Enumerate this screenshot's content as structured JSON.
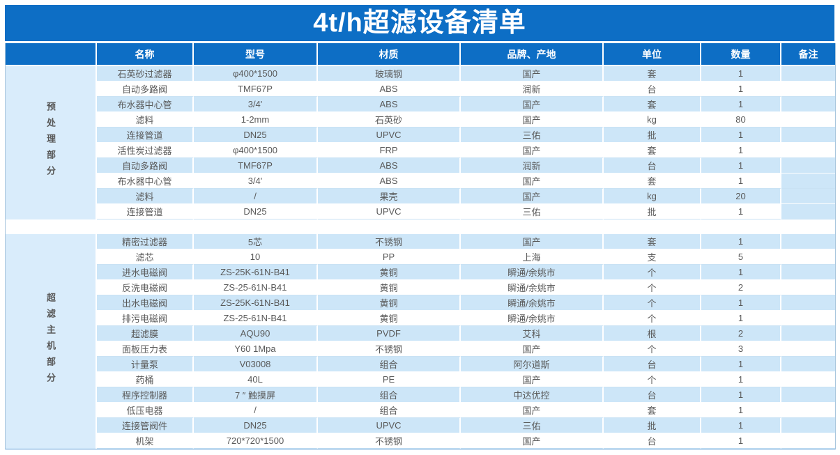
{
  "title": "4t/h超滤设备清单",
  "columns": [
    "名称",
    "型号",
    "材质",
    "品牌、产地",
    "单位",
    "数量",
    "备注"
  ],
  "sections": [
    {
      "label": "预处理部分",
      "remark_filled_rows": [
        7,
        8,
        9
      ],
      "rows": [
        [
          "石英砂过滤器",
          "φ400*1500",
          "玻璃钢",
          "国产",
          "套",
          "1",
          ""
        ],
        [
          "自动多路阀",
          "TMF67P",
          "ABS",
          "润新",
          "台",
          "1",
          ""
        ],
        [
          "布水器中心管",
          "3/4'",
          "ABS",
          "国产",
          "套",
          "1",
          ""
        ],
        [
          "滤料",
          "1-2mm",
          "石英砂",
          "国产",
          "kg",
          "80",
          ""
        ],
        [
          "连接管道",
          "DN25",
          "UPVC",
          "三佑",
          "批",
          "1",
          ""
        ],
        [
          "活性炭过滤器",
          "φ400*1500",
          "FRP",
          "国产",
          "套",
          "1",
          ""
        ],
        [
          "自动多路阀",
          "TMF67P",
          "ABS",
          "润新",
          "台",
          "1",
          ""
        ],
        [
          "布水器中心管",
          "3/4'",
          "ABS",
          "国产",
          "套",
          "1",
          ""
        ],
        [
          "滤料",
          "/",
          "果壳",
          "国产",
          "kg",
          "20",
          ""
        ],
        [
          "连接管道",
          "DN25",
          "UPVC",
          "三佑",
          "批",
          "1",
          ""
        ]
      ]
    },
    {
      "label": "超滤主机部分",
      "remark_filled_rows": [],
      "rows": [
        [
          "精密过滤器",
          "5芯",
          "不锈钢",
          "国产",
          "套",
          "1",
          ""
        ],
        [
          "滤芯",
          "10",
          "PP",
          "上海",
          "支",
          "5",
          ""
        ],
        [
          "进水电磁阀",
          "ZS-25K-61N-B41",
          "黄铜",
          "瞬通/余姚市",
          "个",
          "1",
          ""
        ],
        [
          "反洗电磁阀",
          "ZS-25-61N-B41",
          "黄铜",
          "瞬通/余姚市",
          "个",
          "2",
          ""
        ],
        [
          "出水电磁阀",
          "ZS-25K-61N-B41",
          "黄铜",
          "瞬通/余姚市",
          "个",
          "1",
          ""
        ],
        [
          "排污电磁阀",
          "ZS-25-61N-B41",
          "黄铜",
          "瞬通/余姚市",
          "个",
          "1",
          ""
        ],
        [
          "超滤膜",
          "AQU90",
          "PVDF",
          "艾科",
          "根",
          "2",
          ""
        ],
        [
          "面板压力表",
          "Y60 1Mpa",
          "不锈钢",
          "国产",
          "个",
          "3",
          ""
        ],
        [
          "计量泵",
          "V03008",
          "组合",
          "阿尔道斯",
          "台",
          "1",
          ""
        ],
        [
          "药桶",
          "40L",
          "PE",
          "国产",
          "个",
          "1",
          ""
        ],
        [
          "程序控制器",
          "7 ″ 触摸屏",
          "组合",
          "中达优控",
          "台",
          "1",
          ""
        ],
        [
          "低压电器",
          "/",
          "组合",
          "国产",
          "套",
          "1",
          ""
        ],
        [
          "连接管阀件",
          "DN25",
          "UPVC",
          "三佑",
          "批",
          "1",
          ""
        ],
        [
          "机架",
          "720*720*1500",
          "不锈钢",
          "国产",
          "台",
          "1",
          ""
        ]
      ]
    }
  ],
  "colors": {
    "header_blue": "#0d6ec5",
    "row_alt_blue": "#cde6f8",
    "section_fill_blue": "#d9ecfb",
    "text_gray": "#595959"
  }
}
